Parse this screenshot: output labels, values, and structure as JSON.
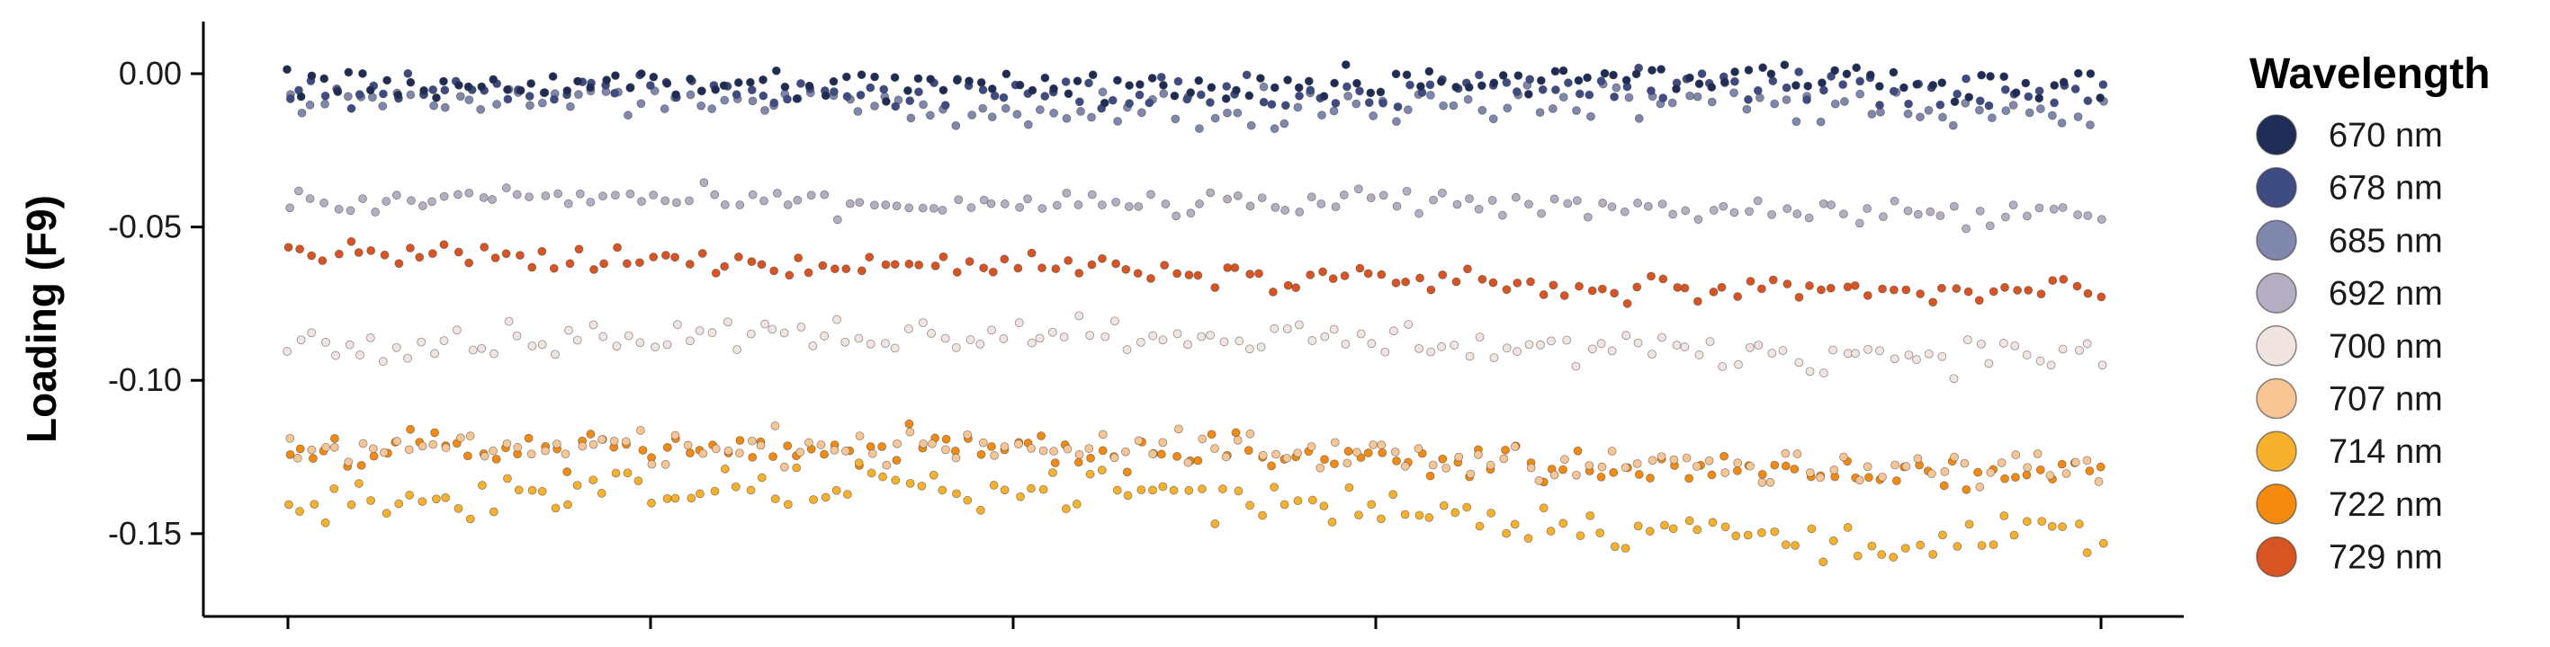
{
  "chart_data": {
    "type": "scatter",
    "ylabel": "Loading (F9)",
    "xlabel": "",
    "ylim": [
      -0.177,
      0.017
    ],
    "xlim": [
      0,
      1000
    ],
    "y_ticks": [
      {
        "value": 0.0,
        "label": "0.00"
      },
      {
        "value": -0.05,
        "label": "-0.05"
      },
      {
        "value": -0.1,
        "label": "-0.10"
      },
      {
        "value": -0.15,
        "label": "-0.15"
      }
    ],
    "x_ticks": [
      0,
      200,
      400,
      600,
      800,
      1000
    ],
    "points_per_series": 150,
    "grid": false,
    "legend": {
      "title": "Wavelength",
      "position": "right"
    },
    "series": [
      {
        "name": "670 nm",
        "color": "#1f2d56",
        "trend": [
          -0.003,
          -0.003,
          -0.004,
          -0.004,
          -0.003,
          0.0,
          -0.001,
          -0.004
        ],
        "spread": 0.004
      },
      {
        "name": "678 nm",
        "color": "#3f4c84",
        "trend": [
          -0.006,
          -0.005,
          -0.006,
          -0.007,
          -0.006,
          -0.004,
          -0.004,
          -0.008
        ],
        "spread": 0.004
      },
      {
        "name": "685 nm",
        "color": "#7f87ad",
        "trend": [
          -0.01,
          -0.008,
          -0.01,
          -0.012,
          -0.01,
          -0.008,
          -0.01,
          -0.014
        ],
        "spread": 0.005
      },
      {
        "name": "692 nm",
        "color": "#b5adc2",
        "trend": [
          -0.043,
          -0.04,
          -0.042,
          -0.043,
          -0.042,
          -0.043,
          -0.045,
          -0.047
        ],
        "spread": 0.003
      },
      {
        "name": "700 nm",
        "color": "#f2e4e1",
        "trend": [
          -0.088,
          -0.086,
          -0.085,
          -0.084,
          -0.086,
          -0.09,
          -0.091,
          -0.092
        ],
        "spread": 0.004
      },
      {
        "name": "707 nm",
        "color": "#f8c595",
        "trend": [
          -0.124,
          -0.122,
          -0.121,
          -0.121,
          -0.124,
          -0.127,
          -0.13,
          -0.128
        ],
        "spread": 0.004
      },
      {
        "name": "714 nm",
        "color": "#f7b12c",
        "trend": [
          -0.14,
          -0.137,
          -0.135,
          -0.135,
          -0.14,
          -0.147,
          -0.152,
          -0.15
        ],
        "spread": 0.005
      },
      {
        "name": "722 nm",
        "color": "#f48a10",
        "trend": [
          -0.124,
          -0.122,
          -0.122,
          -0.123,
          -0.125,
          -0.128,
          -0.131,
          -0.13
        ],
        "spread": 0.004
      },
      {
        "name": "729 nm",
        "color": "#d85423",
        "trend": [
          -0.058,
          -0.061,
          -0.062,
          -0.062,
          -0.066,
          -0.07,
          -0.072,
          -0.07
        ],
        "spread": 0.003
      }
    ]
  }
}
